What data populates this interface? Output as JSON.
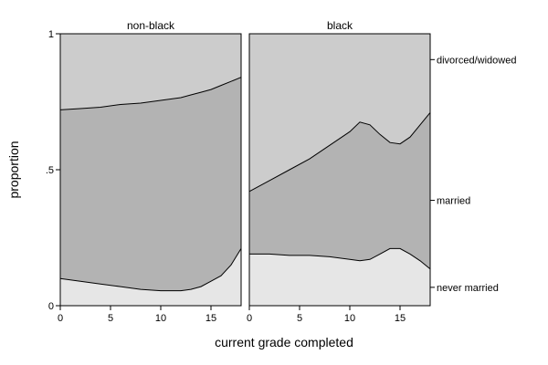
{
  "chart_data": {
    "type": "area",
    "stacked": true,
    "xlabel": "current grade completed",
    "ylabel": "proportion",
    "xlim": [
      0,
      18
    ],
    "ylim": [
      0,
      1
    ],
    "xticks": [
      0,
      5,
      10,
      15
    ],
    "yticks": [
      {
        "value": 0,
        "label": "0"
      },
      {
        "value": 0.5,
        "label": ".5"
      },
      {
        "value": 1,
        "label": "1"
      }
    ],
    "categories": [
      "never married",
      "married",
      "divorced/widowed"
    ],
    "colors": {
      "never married": "#e6e6e6",
      "married": "#b3b3b3",
      "divorced/widowed": "#cccccc"
    },
    "legend_placement": "right",
    "panels": [
      {
        "title": "non-black",
        "x": [
          0,
          2,
          4,
          6,
          8,
          10,
          12,
          13,
          14,
          15,
          16,
          17,
          18
        ],
        "boundary_never_married": [
          0.1,
          0.09,
          0.08,
          0.07,
          0.06,
          0.055,
          0.055,
          0.06,
          0.07,
          0.09,
          0.11,
          0.15,
          0.21
        ],
        "boundary_married": [
          0.72,
          0.725,
          0.73,
          0.74,
          0.745,
          0.755,
          0.765,
          0.775,
          0.785,
          0.795,
          0.81,
          0.825,
          0.84
        ]
      },
      {
        "title": "black",
        "x": [
          0,
          2,
          4,
          6,
          8,
          10,
          11,
          12,
          13,
          14,
          15,
          16,
          17,
          18
        ],
        "boundary_never_married": [
          0.19,
          0.19,
          0.185,
          0.185,
          0.18,
          0.17,
          0.165,
          0.17,
          0.19,
          0.21,
          0.21,
          0.19,
          0.165,
          0.135
        ],
        "boundary_married": [
          0.42,
          0.46,
          0.5,
          0.54,
          0.59,
          0.64,
          0.675,
          0.665,
          0.63,
          0.6,
          0.595,
          0.62,
          0.665,
          0.71
        ]
      }
    ]
  }
}
